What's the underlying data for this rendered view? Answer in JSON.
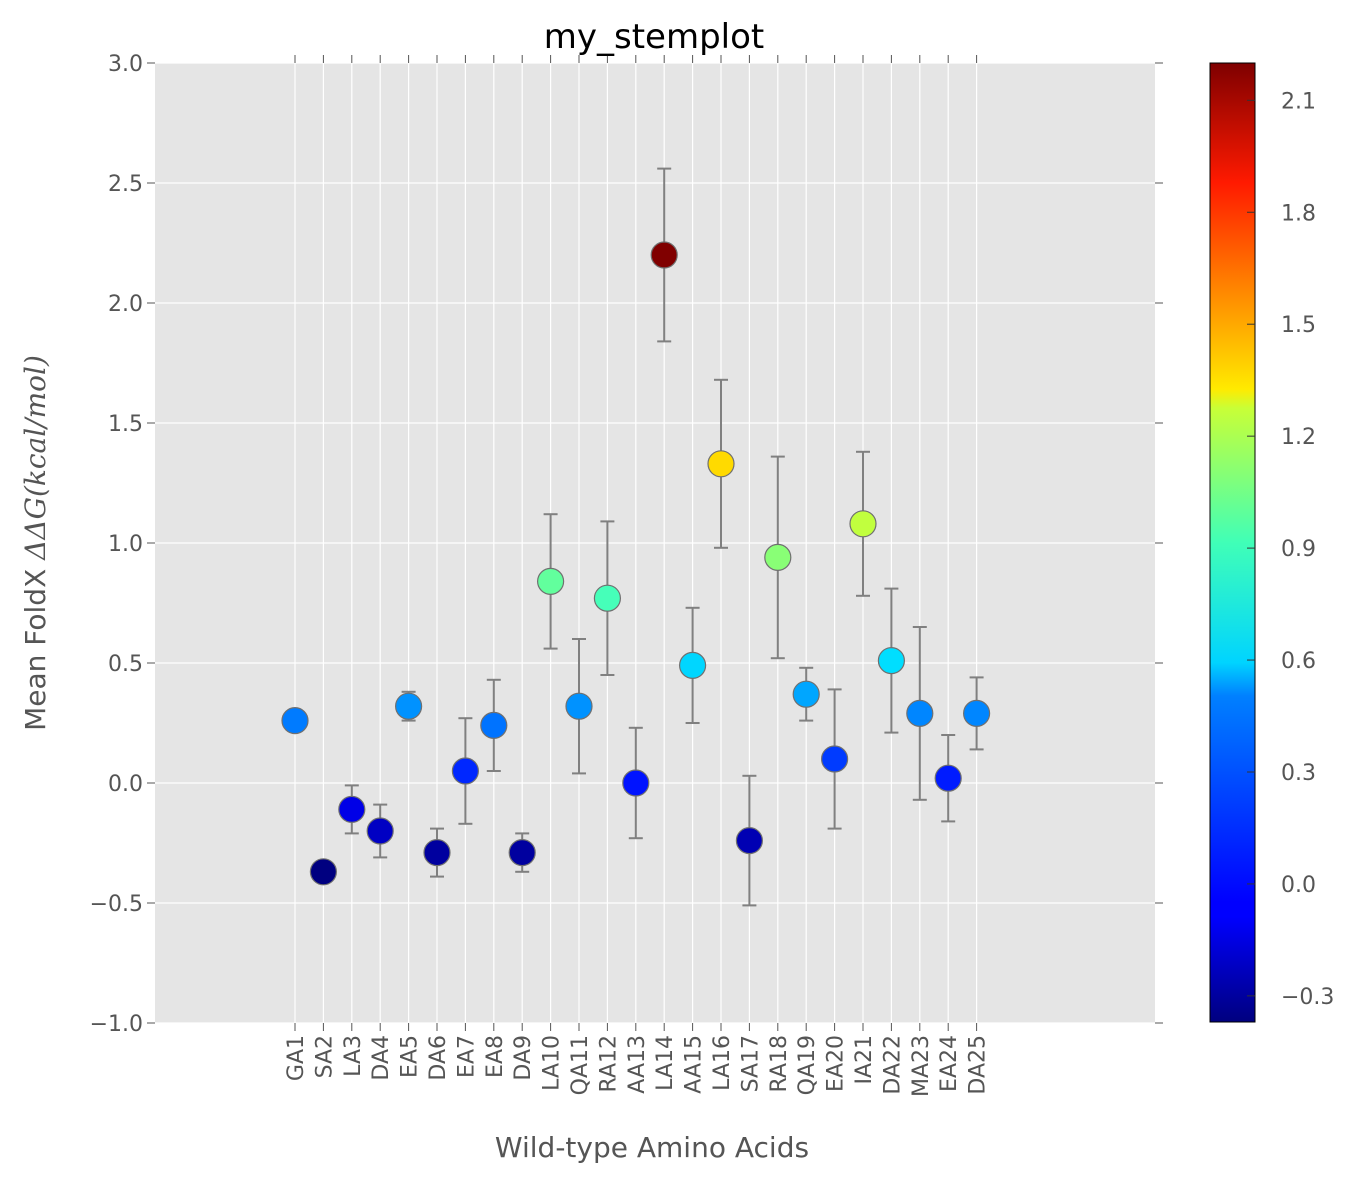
{
  "chart_data": {
    "type": "scatter",
    "title": "my_stemplot",
    "xlabel": "Wild-type Amino Acids",
    "ylabel": {
      "prefix": "Mean FoldX ",
      "math": "ΔΔG(kcal/mol)"
    },
    "ylim": [
      -1.0,
      3.0
    ],
    "yticks": [
      "−1.0",
      "−0.5",
      "0.0",
      "0.5",
      "1.0",
      "1.5",
      "2.0",
      "2.5",
      "3.0"
    ],
    "ytick_values": [
      -1.0,
      -0.5,
      0.0,
      0.5,
      1.0,
      1.5,
      2.0,
      2.5,
      3.0
    ],
    "grid": true,
    "background": "#e5e5e5",
    "error_bar_color": "#808080",
    "categories": [
      "GA1",
      "SA2",
      "LA3",
      "DA4",
      "EA5",
      "DA6",
      "EA7",
      "EA8",
      "DA9",
      "LA10",
      "QA11",
      "RA12",
      "AA13",
      "LA14",
      "AA15",
      "LA16",
      "SA17",
      "RA18",
      "QA19",
      "EA20",
      "IA21",
      "DA22",
      "MA23",
      "EA24",
      "DA25"
    ],
    "values": [
      0.26,
      -0.37,
      -0.11,
      -0.2,
      0.32,
      -0.29,
      0.05,
      0.24,
      -0.29,
      0.84,
      0.32,
      0.77,
      0.0,
      2.2,
      0.49,
      1.33,
      -0.24,
      0.94,
      0.37,
      0.1,
      1.08,
      0.51,
      0.29,
      0.02,
      0.29
    ],
    "errors": [
      0.02,
      0.03,
      0.1,
      0.11,
      0.06,
      0.1,
      0.22,
      0.19,
      0.08,
      0.28,
      0.28,
      0.32,
      0.23,
      0.36,
      0.24,
      0.35,
      0.27,
      0.42,
      0.11,
      0.29,
      0.3,
      0.3,
      0.36,
      0.18,
      0.15
    ],
    "colorbar": {
      "colormap": "jet",
      "vmin": -0.37,
      "vmax": 2.2,
      "ticks": [
        "−0.3",
        "0.0",
        "0.3",
        "0.6",
        "0.9",
        "1.2",
        "1.5",
        "1.8",
        "2.1"
      ],
      "tick_values": [
        -0.3,
        0.0,
        0.3,
        0.6,
        0.9,
        1.2,
        1.5,
        1.8,
        2.1
      ]
    }
  }
}
